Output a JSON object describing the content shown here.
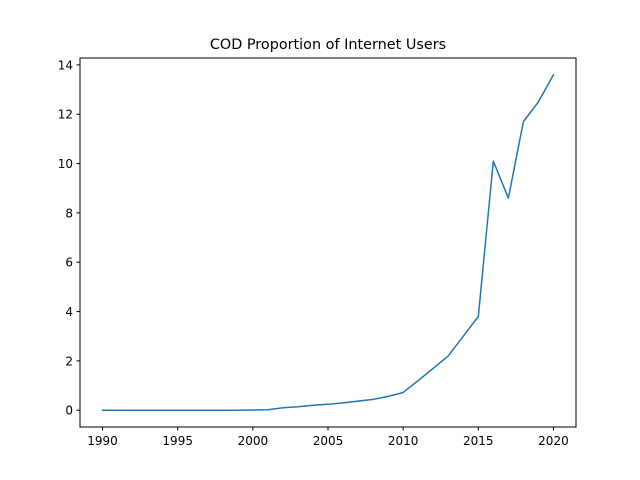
{
  "chart_data": {
    "type": "line",
    "title": "COD Proportion of Internet Users",
    "xlabel": "",
    "ylabel": "",
    "xlim": [
      1988.5,
      2021.5
    ],
    "ylim": [
      -0.68,
      14.28
    ],
    "x_ticks": [
      1990,
      1995,
      2000,
      2005,
      2010,
      2015,
      2020
    ],
    "y_ticks": [
      0,
      2,
      4,
      6,
      8,
      10,
      12,
      14
    ],
    "grid": false,
    "series": [
      {
        "color": "#1f77b4",
        "x": [
          1990,
          1991,
          1992,
          1993,
          1994,
          1995,
          1996,
          1997,
          1998,
          1999,
          2000,
          2001,
          2002,
          2003,
          2004,
          2005,
          2006,
          2007,
          2008,
          2009,
          2010,
          2011,
          2012,
          2013,
          2014,
          2015,
          2016,
          2017,
          2018,
          2019,
          2020
        ],
        "y": [
          0,
          0,
          0,
          0,
          0,
          0,
          0,
          0,
          0,
          0,
          0.01,
          0.02,
          0.1,
          0.14,
          0.2,
          0.24,
          0.3,
          0.37,
          0.44,
          0.56,
          0.72,
          1.2,
          1.7,
          2.2,
          3.0,
          3.8,
          10.1,
          8.6,
          11.7,
          12.5,
          13.6
        ]
      }
    ]
  }
}
